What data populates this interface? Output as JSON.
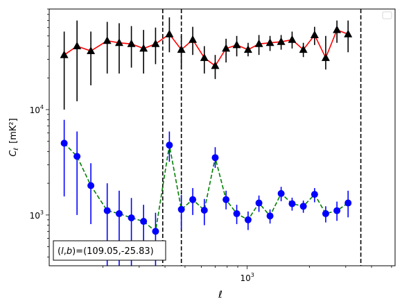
{
  "chart_data": {
    "type": "line",
    "xlabel": "ℓ",
    "ylabel_main": "C",
    "ylabel_sub": "ℓ",
    "ylabel_unit": "[mK²]",
    "x_scale": "log",
    "y_scale": "log",
    "xlim": [
      110,
      5200
    ],
    "ylim": [
      330,
      90000
    ],
    "x_tick_labels": [
      {
        "x": 1000,
        "base": "10",
        "exp": "3"
      }
    ],
    "y_tick_labels": [
      {
        "y": 1000,
        "base": "10",
        "exp": "3"
      },
      {
        "y": 10000,
        "base": "10",
        "exp": "4"
      }
    ],
    "legend": {
      "placement": "top-right",
      "entries": []
    },
    "annotation": {
      "prefix": "(",
      "l": "l",
      "comma": ",",
      "b": "b",
      "suffix": ")=(109.05,-25.83)"
    },
    "vlines": [
      390,
      480,
      3550
    ],
    "series": [
      {
        "style": {
          "marker": "triangle",
          "color": "#000000",
          "line": "#ff0000",
          "dash": "solid"
        },
        "points": [
          {
            "x": 130,
            "y": 33000,
            "lo": 10000,
            "hi": 55000
          },
          {
            "x": 150,
            "y": 40000,
            "lo": 12000,
            "hi": 70000
          },
          {
            "x": 175,
            "y": 36000,
            "lo": 17000,
            "hi": 55000
          },
          {
            "x": 210,
            "y": 45000,
            "lo": 22000,
            "hi": 68000
          },
          {
            "x": 240,
            "y": 43000,
            "lo": 22000,
            "hi": 66000
          },
          {
            "x": 275,
            "y": 42000,
            "lo": 25000,
            "hi": 62000
          },
          {
            "x": 315,
            "y": 38000,
            "lo": 22000,
            "hi": 57000
          },
          {
            "x": 360,
            "y": 42000,
            "lo": 27000,
            "hi": 60000
          },
          {
            "x": 420,
            "y": 52000,
            "lo": 35000,
            "hi": 75000
          },
          {
            "x": 480,
            "y": 37000,
            "lo": 24000,
            "hi": 50000
          },
          {
            "x": 545,
            "y": 46000,
            "lo": 33000,
            "hi": 61000
          },
          {
            "x": 620,
            "y": 31000,
            "lo": 22000,
            "hi": 40000
          },
          {
            "x": 700,
            "y": 26000,
            "lo": 19500,
            "hi": 33000
          },
          {
            "x": 790,
            "y": 38000,
            "lo": 28000,
            "hi": 47000
          },
          {
            "x": 890,
            "y": 41000,
            "lo": 32000,
            "hi": 50000
          },
          {
            "x": 1010,
            "y": 37000,
            "lo": 32000,
            "hi": 43000
          },
          {
            "x": 1140,
            "y": 42000,
            "lo": 33000,
            "hi": 51000
          },
          {
            "x": 1290,
            "y": 43000,
            "lo": 36000,
            "hi": 50000
          },
          {
            "x": 1460,
            "y": 44000,
            "lo": 37000,
            "hi": 51000
          },
          {
            "x": 1650,
            "y": 46000,
            "lo": 38000,
            "hi": 55000
          },
          {
            "x": 1870,
            "y": 37000,
            "lo": 31500,
            "hi": 43000
          },
          {
            "x": 2120,
            "y": 51000,
            "lo": 41000,
            "hi": 61000
          },
          {
            "x": 2400,
            "y": 31000,
            "lo": 24000,
            "hi": 50000
          },
          {
            "x": 2720,
            "y": 57000,
            "lo": 43000,
            "hi": 70000
          },
          {
            "x": 3080,
            "y": 52000,
            "lo": 35000,
            "hi": 70000
          }
        ]
      },
      {
        "style": {
          "marker": "circle",
          "color": "#0000ff",
          "line": "#008000",
          "dash": "dashed"
        },
        "points": [
          {
            "x": 130,
            "y": 4800,
            "lo": 1500,
            "hi": 8000
          },
          {
            "x": 150,
            "y": 3600,
            "lo": 1000,
            "hi": 6200
          },
          {
            "x": 175,
            "y": 1900,
            "lo": 820,
            "hi": 3100
          },
          {
            "x": 210,
            "y": 1100,
            "lo": 330,
            "hi": 2000
          },
          {
            "x": 240,
            "y": 1030,
            "lo": 330,
            "hi": 1700
          },
          {
            "x": 275,
            "y": 940,
            "lo": 330,
            "hi": 1450
          },
          {
            "x": 315,
            "y": 870,
            "lo": 480,
            "hi": 1250
          },
          {
            "x": 360,
            "y": 700,
            "lo": 330,
            "hi": 1050
          },
          {
            "x": 420,
            "y": 4600,
            "lo": 3200,
            "hi": 6200
          },
          {
            "x": 480,
            "y": 1130,
            "lo": 730,
            "hi": 1550
          },
          {
            "x": 545,
            "y": 1400,
            "lo": 1000,
            "hi": 1800
          },
          {
            "x": 620,
            "y": 1110,
            "lo": 800,
            "hi": 1420
          },
          {
            "x": 700,
            "y": 3500,
            "lo": 2800,
            "hi": 4400
          },
          {
            "x": 790,
            "y": 1400,
            "lo": 1130,
            "hi": 1700
          },
          {
            "x": 890,
            "y": 1030,
            "lo": 820,
            "hi": 1250
          },
          {
            "x": 1010,
            "y": 900,
            "lo": 720,
            "hi": 1080
          },
          {
            "x": 1140,
            "y": 1300,
            "lo": 1070,
            "hi": 1530
          },
          {
            "x": 1290,
            "y": 980,
            "lo": 830,
            "hi": 1130
          },
          {
            "x": 1460,
            "y": 1600,
            "lo": 1350,
            "hi": 1850
          },
          {
            "x": 1650,
            "y": 1280,
            "lo": 1100,
            "hi": 1460
          },
          {
            "x": 1870,
            "y": 1210,
            "lo": 1050,
            "hi": 1370
          },
          {
            "x": 2120,
            "y": 1570,
            "lo": 1320,
            "hi": 1800
          },
          {
            "x": 2400,
            "y": 1030,
            "lo": 850,
            "hi": 1210
          },
          {
            "x": 2720,
            "y": 1100,
            "lo": 880,
            "hi": 1340
          },
          {
            "x": 3080,
            "y": 1300,
            "lo": 950,
            "hi": 1700
          }
        ]
      }
    ]
  }
}
